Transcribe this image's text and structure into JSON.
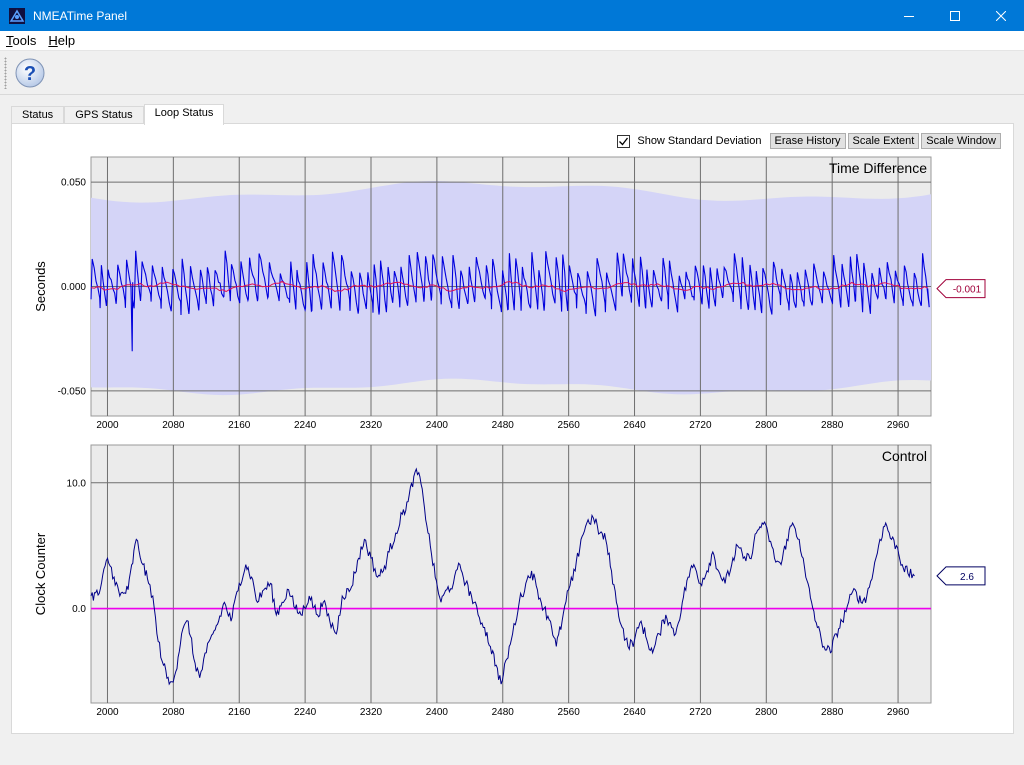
{
  "window": {
    "title": "NMEATime Panel"
  },
  "menu": [
    {
      "underline": "T",
      "rest": "ools"
    },
    {
      "underline": "H",
      "rest": "elp"
    }
  ],
  "tabs": [
    "Status",
    "GPS Status",
    "Loop Status"
  ],
  "active_tab": "Loop Status",
  "controls": {
    "show_std_dev_label": "Show Standard Deviation",
    "show_std_dev_checked": true,
    "erase_history": "Erase History",
    "scale_extent": "Scale Extent",
    "scale_window": "Scale Window"
  },
  "colors": {
    "titlebar": "#0078d7",
    "plot_bg": "#ebebeb",
    "std_band": "#d4d4f7",
    "time_diff_line": "#0000dd",
    "mean_line": "#dd1155",
    "control_line": "#000088",
    "zero_line": "#ee00ee"
  },
  "chart_data": [
    {
      "type": "line",
      "title": "Time Difference",
      "ylabel": "Seconds",
      "xlabel": "",
      "xlim": [
        1980,
        3000
      ],
      "ylim": [
        -0.062,
        0.062
      ],
      "x_ticks": [
        2000,
        2080,
        2160,
        2240,
        2320,
        2400,
        2480,
        2560,
        2640,
        2720,
        2800,
        2880,
        2960
      ],
      "y_ticks": [
        {
          "value": 0.05,
          "label": "0.050"
        },
        {
          "value": 0.0,
          "label": "0.000"
        },
        {
          "value": -0.05,
          "label": "-0.050"
        }
      ],
      "grid": true,
      "current_value_label": "-0.001",
      "series": [
        {
          "role": "time difference",
          "sample_points": [
            [
              1980,
              0.002
            ],
            [
              2040,
              0.006
            ],
            [
              2100,
              -0.004
            ],
            [
              2160,
              0.008
            ],
            [
              2220,
              -0.006
            ],
            [
              2280,
              0.004
            ],
            [
              2340,
              -0.003
            ],
            [
              2400,
              0.007
            ],
            [
              2460,
              -0.005
            ],
            [
              2520,
              0.006
            ],
            [
              2580,
              -0.004
            ],
            [
              2640,
              0.009
            ],
            [
              2700,
              -0.005
            ],
            [
              2760,
              0.006
            ],
            [
              2820,
              -0.003
            ],
            [
              2880,
              0.005
            ],
            [
              2940,
              -0.004
            ],
            [
              2990,
              0.001
            ]
          ],
          "outlier": [
            2030,
            -0.031
          ]
        },
        {
          "role": "mean",
          "approx_value": 0.0
        },
        {
          "role": "standard deviation band",
          "upper": 0.05,
          "lower": -0.048
        }
      ]
    },
    {
      "type": "line",
      "title": "Control",
      "ylabel": "Clock Counter",
      "xlabel": "",
      "xlim": [
        1980,
        3000
      ],
      "ylim": [
        -7.5,
        13
      ],
      "x_ticks": [
        2000,
        2080,
        2160,
        2240,
        2320,
        2400,
        2480,
        2560,
        2640,
        2720,
        2800,
        2880,
        2960
      ],
      "y_ticks": [
        {
          "value": 10.0,
          "label": "10.0"
        },
        {
          "value": 0.0,
          "label": "0.0"
        }
      ],
      "grid": true,
      "current_value_label": "2.6",
      "series": [
        {
          "role": "control",
          "points": [
            [
              1980,
              1.0
            ],
            [
              1990,
              1.2
            ],
            [
              2000,
              4.0
            ],
            [
              2008,
              2.5
            ],
            [
              2015,
              1.0
            ],
            [
              2025,
              1.5
            ],
            [
              2035,
              5.5
            ],
            [
              2043,
              3.5
            ],
            [
              2050,
              2.0
            ],
            [
              2055,
              1.0
            ],
            [
              2060,
              -2.0
            ],
            [
              2068,
              -4.5
            ],
            [
              2075,
              -6.0
            ],
            [
              2083,
              -5.0
            ],
            [
              2090,
              -2.0
            ],
            [
              2098,
              -1.0
            ],
            [
              2105,
              -4.0
            ],
            [
              2112,
              -5.5
            ],
            [
              2120,
              -3.5
            ],
            [
              2128,
              -2.0
            ],
            [
              2135,
              -1.0
            ],
            [
              2142,
              0.5
            ],
            [
              2150,
              -1.0
            ],
            [
              2160,
              2.0
            ],
            [
              2168,
              3.5
            ],
            [
              2175,
              2.5
            ],
            [
              2182,
              0.5
            ],
            [
              2190,
              1.5
            ],
            [
              2198,
              2.0
            ],
            [
              2205,
              -0.5
            ],
            [
              2212,
              0.5
            ],
            [
              2220,
              1.5
            ],
            [
              2228,
              0.0
            ],
            [
              2235,
              -0.5
            ],
            [
              2245,
              1.0
            ],
            [
              2255,
              -0.5
            ],
            [
              2262,
              0.5
            ],
            [
              2270,
              -1.0
            ],
            [
              2278,
              -2.0
            ],
            [
              2285,
              1.0
            ],
            [
              2295,
              1.5
            ],
            [
              2305,
              4.0
            ],
            [
              2312,
              5.5
            ],
            [
              2320,
              4.0
            ],
            [
              2328,
              2.5
            ],
            [
              2335,
              3.0
            ],
            [
              2342,
              4.5
            ],
            [
              2350,
              6.0
            ],
            [
              2358,
              7.5
            ],
            [
              2365,
              8.5
            ],
            [
              2372,
              10.5
            ],
            [
              2378,
              10.8
            ],
            [
              2385,
              8.0
            ],
            [
              2392,
              5.0
            ],
            [
              2398,
              2.5
            ],
            [
              2405,
              0.5
            ],
            [
              2412,
              1.5
            ],
            [
              2420,
              2.0
            ],
            [
              2428,
              3.5
            ],
            [
              2435,
              2.0
            ],
            [
              2442,
              1.0
            ],
            [
              2450,
              -0.5
            ],
            [
              2458,
              -1.5
            ],
            [
              2465,
              -3.0
            ],
            [
              2472,
              -4.5
            ],
            [
              2478,
              -6.0
            ],
            [
              2485,
              -4.0
            ],
            [
              2492,
              -2.0
            ],
            [
              2500,
              0.5
            ],
            [
              2508,
              2.0
            ],
            [
              2515,
              3.0
            ],
            [
              2522,
              1.5
            ],
            [
              2530,
              0.0
            ],
            [
              2538,
              -1.0
            ],
            [
              2545,
              -3.0
            ],
            [
              2552,
              -1.0
            ],
            [
              2560,
              1.5
            ],
            [
              2568,
              3.0
            ],
            [
              2575,
              5.5
            ],
            [
              2582,
              6.8
            ],
            [
              2590,
              7.2
            ],
            [
              2598,
              6.0
            ],
            [
              2605,
              5.5
            ],
            [
              2612,
              3.0
            ],
            [
              2618,
              0.5
            ],
            [
              2625,
              -1.5
            ],
            [
              2632,
              -3.0
            ],
            [
              2640,
              -2.5
            ],
            [
              2648,
              -1.0
            ],
            [
              2655,
              -2.5
            ],
            [
              2662,
              -3.5
            ],
            [
              2670,
              -2.0
            ],
            [
              2678,
              -0.5
            ],
            [
              2685,
              -1.5
            ],
            [
              2690,
              -2.0
            ],
            [
              2698,
              0.5
            ],
            [
              2705,
              2.5
            ],
            [
              2712,
              3.5
            ],
            [
              2720,
              2.0
            ],
            [
              2728,
              3.0
            ],
            [
              2735,
              4.5
            ],
            [
              2742,
              3.0
            ],
            [
              2750,
              2.0
            ],
            [
              2758,
              3.5
            ],
            [
              2765,
              5.0
            ],
            [
              2772,
              4.0
            ],
            [
              2780,
              4.0
            ],
            [
              2788,
              6.0
            ],
            [
              2795,
              6.8
            ],
            [
              2802,
              6.0
            ],
            [
              2810,
              4.0
            ],
            [
              2818,
              3.5
            ],
            [
              2825,
              5.5
            ],
            [
              2832,
              6.8
            ],
            [
              2840,
              5.5
            ],
            [
              2848,
              2.5
            ],
            [
              2855,
              0.5
            ],
            [
              2862,
              -1.5
            ],
            [
              2870,
              -3.0
            ],
            [
              2878,
              -3.5
            ],
            [
              2885,
              -2.0
            ],
            [
              2892,
              -1.0
            ],
            [
              2900,
              0.5
            ],
            [
              2908,
              1.5
            ],
            [
              2915,
              0.5
            ],
            [
              2922,
              1.0
            ],
            [
              2930,
              3.0
            ],
            [
              2938,
              5.5
            ],
            [
              2945,
              6.8
            ],
            [
              2952,
              5.5
            ],
            [
              2958,
              5.0
            ],
            [
              2965,
              3.5
            ],
            [
              2972,
              2.8
            ],
            [
              2980,
              2.6
            ]
          ]
        },
        {
          "role": "zero reference",
          "value": 0.0
        }
      ]
    }
  ]
}
